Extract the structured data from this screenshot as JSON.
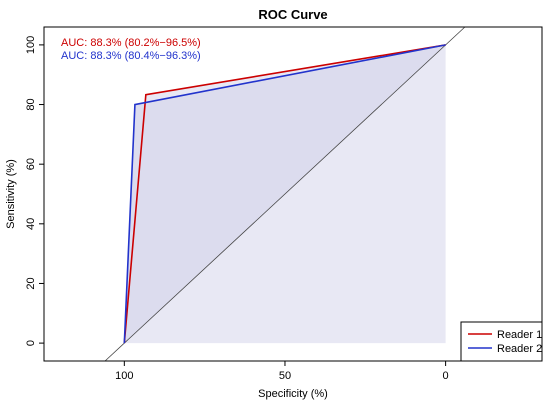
{
  "chart_data": {
    "type": "line",
    "title": "ROC Curve",
    "xlabel": "Specificity (%)",
    "ylabel": "Sensitivity (%)",
    "xlim": [
      125,
      -30
    ],
    "ylim": [
      -6,
      106
    ],
    "x_reversed": true,
    "xticks": [
      100,
      50,
      0
    ],
    "yticks": [
      0,
      20,
      40,
      60,
      80,
      100
    ],
    "grid": false,
    "legend_position": "bottom-right",
    "series": [
      {
        "name": "Reader 1",
        "color": "#cc0000",
        "auc_text": "AUC: 88.3% (80.2%−96.5%)",
        "points": [
          [
            100,
            0
          ],
          [
            93.3,
            83.3
          ],
          [
            0,
            100
          ]
        ]
      },
      {
        "name": "Reader 2",
        "color": "#2233cc",
        "auc_text": "AUC: 88.3% (80.4%−96.3%)",
        "points": [
          [
            100,
            0
          ],
          [
            96.7,
            80
          ],
          [
            0,
            100
          ]
        ]
      }
    ],
    "diagonal_color": "#444444",
    "fill_color": "#dcdcee"
  }
}
